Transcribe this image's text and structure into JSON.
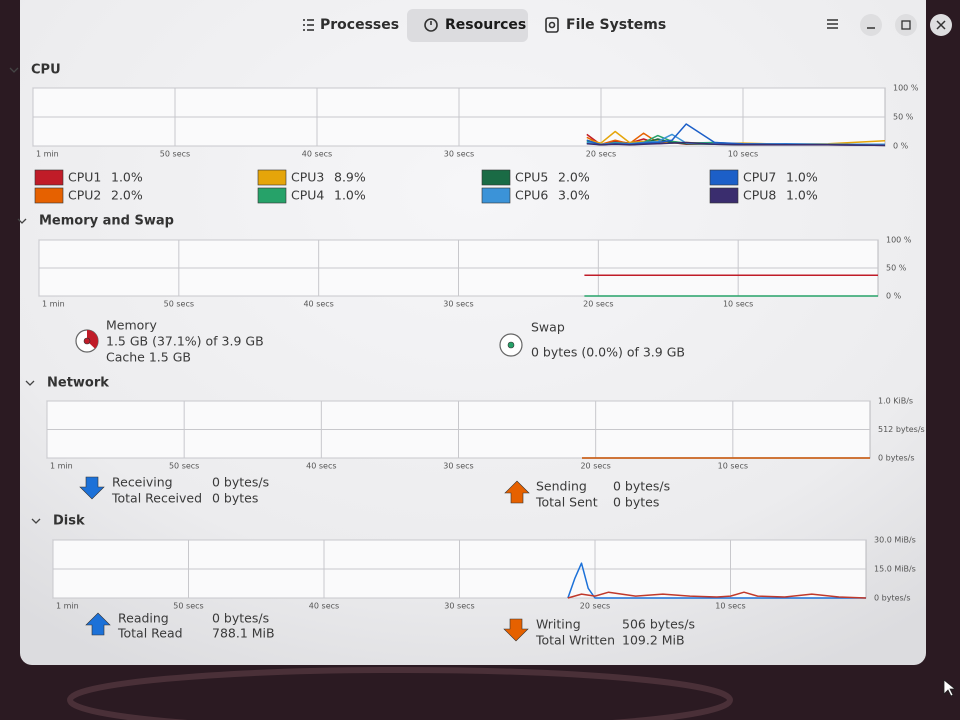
{
  "header": {
    "tabs": [
      "Processes",
      "Resources",
      "File Systems"
    ],
    "active_tab": 1
  },
  "sections": [
    {
      "title": "CPU",
      "graph": {
        "xlim": [
          60,
          0
        ],
        "ylim": [
          0,
          100
        ],
        "xticks": [
          {
            "value": 60,
            "label": "1 min"
          },
          {
            "value": 50,
            "label": "50 secs"
          },
          {
            "value": 40,
            "label": "40 secs"
          },
          {
            "value": 30,
            "label": "30 secs"
          },
          {
            "value": 20,
            "label": "20 secs"
          },
          {
            "value": 10,
            "label": "10 secs"
          }
        ],
        "yticks": [
          {
            "value": 100,
            "label": "100 %"
          },
          {
            "value": 50,
            "label": "50 %"
          },
          {
            "value": 0,
            "label": "0 %"
          }
        ],
        "series": [
          {
            "name": "CPU1",
            "current": "1.0%",
            "color": "#c01c28",
            "x": [
              21,
              20,
              19,
              18,
              17,
              16,
              15,
              14,
              12,
              10,
              7,
              4,
              0
            ],
            "values": [
              20,
              2,
              8,
              5,
              12,
              4,
              6,
              3,
              4,
              2,
              3,
              2,
              1
            ]
          },
          {
            "name": "CPU2",
            "current": "2.0%",
            "color": "#e66100",
            "x": [
              21,
              20,
              19,
              18,
              17,
              16,
              15,
              14,
              12,
              10,
              7,
              4,
              0
            ],
            "values": [
              15,
              3,
              10,
              4,
              22,
              6,
              8,
              4,
              5,
              3,
              2,
              3,
              2
            ]
          },
          {
            "name": "CPU3",
            "current": "8.9%",
            "color": "#e5a50a",
            "x": [
              21,
              20,
              19,
              18,
              17,
              16,
              15,
              14,
              12,
              10,
              7,
              4,
              0
            ],
            "values": [
              10,
              5,
              25,
              6,
              8,
              10,
              5,
              6,
              4,
              5,
              3,
              4,
              9
            ]
          },
          {
            "name": "CPU4",
            "current": "1.0%",
            "color": "#26a269",
            "x": [
              21,
              20,
              19,
              18,
              17,
              16,
              15,
              14,
              12,
              10,
              7,
              4,
              0
            ],
            "values": [
              8,
              2,
              6,
              4,
              6,
              18,
              8,
              5,
              6,
              3,
              2,
              3,
              1
            ]
          },
          {
            "name": "CPU5",
            "current": "2.0%",
            "color": "#1a6b45",
            "x": [
              21,
              20,
              19,
              18,
              17,
              16,
              15,
              14,
              12,
              10,
              7,
              4,
              0
            ],
            "values": [
              5,
              2,
              4,
              3,
              5,
              12,
              6,
              4,
              3,
              2,
              2,
              2,
              2
            ]
          },
          {
            "name": "CPU6",
            "current": "3.0%",
            "color": "#3b93d8",
            "x": [
              21,
              20,
              19,
              18,
              17,
              16,
              15,
              14,
              12,
              10,
              7,
              4,
              0
            ],
            "values": [
              6,
              3,
              5,
              4,
              6,
              8,
              20,
              5,
              4,
              3,
              4,
              3,
              3
            ]
          },
          {
            "name": "CPU7",
            "current": "1.0%",
            "color": "#1c5fc8",
            "x": [
              21,
              20,
              19,
              18,
              17,
              16,
              15,
              14,
              12,
              10,
              7,
              4,
              0
            ],
            "values": [
              10,
              2,
              4,
              3,
              5,
              6,
              10,
              38,
              6,
              4,
              3,
              2,
              1
            ]
          },
          {
            "name": "CPU8",
            "current": "1.0%",
            "color": "#3a2d6e",
            "x": [
              21,
              20,
              19,
              18,
              17,
              16,
              15,
              14,
              12,
              10,
              7,
              4,
              0
            ],
            "values": [
              4,
              2,
              3,
              2,
              3,
              4,
              5,
              6,
              3,
              2,
              2,
              2,
              1
            ]
          }
        ]
      }
    },
    {
      "title": "Memory and Swap",
      "graph": {
        "xlim": [
          60,
          0
        ],
        "ylim": [
          0,
          100
        ],
        "xticks": [
          {
            "value": 60,
            "label": "1 min"
          },
          {
            "value": 50,
            "label": "50 secs"
          },
          {
            "value": 40,
            "label": "40 secs"
          },
          {
            "value": 30,
            "label": "30 secs"
          },
          {
            "value": 20,
            "label": "20 secs"
          },
          {
            "value": 10,
            "label": "10 secs"
          }
        ],
        "yticks": [
          {
            "value": 100,
            "label": "100 %"
          },
          {
            "value": 50,
            "label": "50 %"
          },
          {
            "value": 0,
            "label": "0 %"
          }
        ],
        "series": [
          {
            "color": "#c01c28",
            "x": [
              21,
              0
            ],
            "values": [
              37.1,
              37.1
            ]
          },
          {
            "color": "#26a269",
            "x": [
              21,
              0
            ],
            "values": [
              0,
              0
            ]
          }
        ]
      },
      "items": [
        {
          "label": "Memory",
          "lines": [
            "1.5 GB (37.1%) of 3.9 GB",
            "Cache 1.5 GB"
          ],
          "percent": 37.1,
          "color": "#c01c28"
        },
        {
          "label": "Swap",
          "lines": [
            "0 bytes (0.0%) of 3.9 GB"
          ],
          "percent": 0,
          "color": "#26a269"
        }
      ]
    },
    {
      "title": "Network",
      "graph": {
        "xlim": [
          60,
          0
        ],
        "ylim": [
          0,
          1024
        ],
        "xticks": [
          {
            "value": 60,
            "label": "1 min"
          },
          {
            "value": 50,
            "label": "50 secs"
          },
          {
            "value": 40,
            "label": "40 secs"
          },
          {
            "value": 30,
            "label": "30 secs"
          },
          {
            "value": 20,
            "label": "20 secs"
          },
          {
            "value": 10,
            "label": "10 secs"
          }
        ],
        "yticks": [
          {
            "value": 1024,
            "label": "1.0 KiB/s"
          },
          {
            "value": 512,
            "label": "512 bytes/s"
          },
          {
            "value": 0,
            "label": "0 bytes/s"
          }
        ],
        "series": [
          {
            "color": "#1c71d8",
            "x": [
              21,
              0
            ],
            "values": [
              0,
              0
            ]
          },
          {
            "color": "#e66100",
            "x": [
              21,
              0
            ],
            "values": [
              0,
              0
            ]
          }
        ]
      },
      "items": [
        {
          "direction": "down",
          "color": "#1c71d8",
          "rows": [
            [
              "Receiving",
              "0 bytes/s"
            ],
            [
              "Total Received",
              "0 bytes"
            ]
          ]
        },
        {
          "direction": "up",
          "color": "#e66100",
          "rows": [
            [
              "Sending",
              "0 bytes/s"
            ],
            [
              "Total Sent",
              "0 bytes"
            ]
          ]
        }
      ]
    },
    {
      "title": "Disk",
      "graph": {
        "xlim": [
          60,
          0
        ],
        "ylim": [
          0,
          30
        ],
        "xticks": [
          {
            "value": 60,
            "label": "1 min"
          },
          {
            "value": 50,
            "label": "50 secs"
          },
          {
            "value": 40,
            "label": "40 secs"
          },
          {
            "value": 30,
            "label": "30 secs"
          },
          {
            "value": 20,
            "label": "20 secs"
          },
          {
            "value": 10,
            "label": "10 secs"
          }
        ],
        "yticks": [
          {
            "value": 30,
            "label": "30.0 MiB/s"
          },
          {
            "value": 15,
            "label": "15.0 MiB/s"
          },
          {
            "value": 0,
            "label": "0 bytes/s"
          }
        ],
        "series": [
          {
            "color": "#1c71d8",
            "x": [
              22,
              21.5,
              21,
              20.5,
              20,
              0
            ],
            "values": [
              0,
              10,
              18,
              5,
              0,
              0
            ]
          },
          {
            "color": "#c0392b",
            "x": [
              22,
              21,
              20,
              19,
              17,
              15,
              13,
              11,
              10,
              9,
              8,
              6,
              4,
              2,
              0
            ],
            "values": [
              0,
              2,
              1,
              3,
              1,
              2,
              1,
              0.5,
              1,
              3,
              1,
              0.5,
              2,
              0.5,
              0
            ]
          }
        ]
      },
      "items": [
        {
          "direction": "up",
          "color": "#1c71d8",
          "rows": [
            [
              "Reading",
              "0 bytes/s"
            ],
            [
              "Total Read",
              "788.1 MiB"
            ]
          ]
        },
        {
          "direction": "down",
          "color": "#e66100",
          "rows": [
            [
              "Writing",
              "506 bytes/s"
            ],
            [
              "Total Written",
              "109.2 MiB"
            ]
          ]
        }
      ]
    }
  ]
}
